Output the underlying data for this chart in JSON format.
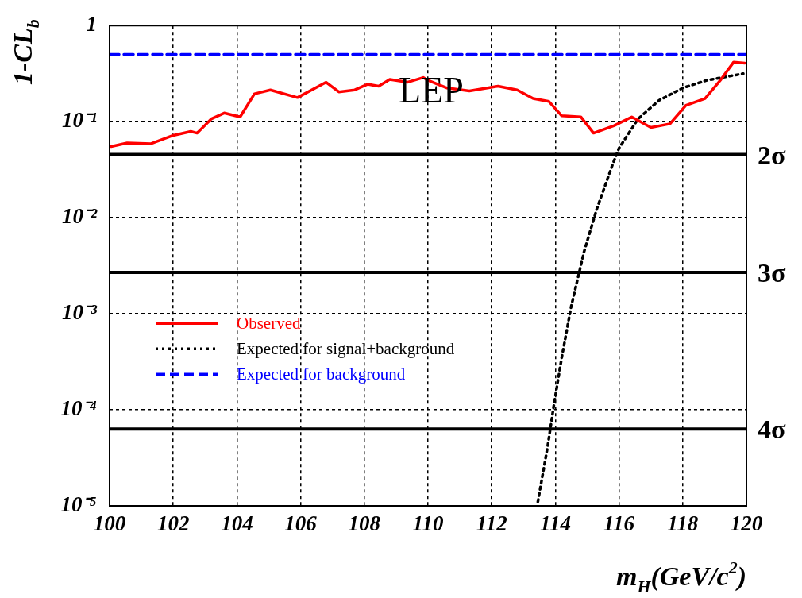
{
  "chart_data": {
    "type": "line",
    "xlabel": "m$_{H}$(GeV/c$^{2}$)",
    "ylabel": "1-CL$_{b}$",
    "log": "y",
    "grid": true,
    "legend": "left",
    "xlim": [
      100,
      120
    ],
    "xticks": [
      100,
      102,
      104,
      106,
      108,
      110,
      112,
      114,
      116,
      118,
      120
    ],
    "ylim": [
      1e-05,
      1
    ],
    "yticks": [
      {
        "value": 1,
        "label": "1"
      },
      {
        "value": 0.1,
        "label": "10⁻¹"
      },
      {
        "value": 0.01,
        "label": "10⁻²"
      },
      {
        "value": 0.001,
        "label": "10⁻³"
      },
      {
        "value": 0.0001,
        "label": "10⁻⁴"
      },
      {
        "value": 1e-05,
        "label": "10⁻⁵"
      }
    ],
    "series": [
      {
        "name": "Observed",
        "color": "#ff0000",
        "line_style": "solid",
        "x": [
          100.05,
          100.55,
          101.3,
          102.0,
          102.55,
          102.75,
          103.2,
          103.6,
          104.1,
          104.55,
          105.05,
          105.9,
          106.8,
          107.2,
          107.7,
          108.1,
          108.45,
          108.8,
          109.35,
          109.85,
          110.0,
          110.6,
          111.3,
          112.2,
          112.8,
          113.3,
          113.8,
          114.2,
          114.8,
          115.2,
          115.85,
          116.4,
          117.0,
          117.6,
          118.1,
          118.7,
          119.2,
          119.6,
          119.95
        ],
        "values": [
          0.055,
          0.06,
          0.059,
          0.072,
          0.079,
          0.076,
          0.107,
          0.123,
          0.112,
          0.195,
          0.214,
          0.178,
          0.257,
          0.204,
          0.214,
          0.245,
          0.234,
          0.275,
          0.257,
          0.288,
          0.269,
          0.224,
          0.209,
          0.234,
          0.214,
          0.174,
          0.162,
          0.115,
          0.112,
          0.076,
          0.091,
          0.112,
          0.087,
          0.095,
          0.148,
          0.174,
          0.275,
          0.417,
          0.407
        ]
      },
      {
        "name": "Expected for signal+background",
        "color": "#000000",
        "line_style": "dotted",
        "x": [
          113.45,
          113.75,
          113.95,
          114.2,
          114.5,
          114.9,
          115.3,
          115.8,
          116.0,
          116.6,
          117.25,
          118.0,
          118.75,
          119.9
        ],
        "values": [
          1.1e-05,
          4e-05,
          0.00011,
          0.00035,
          0.0012,
          0.0044,
          0.0123,
          0.036,
          0.053,
          0.107,
          0.166,
          0.224,
          0.269,
          0.316
        ]
      },
      {
        "name": "Expected for background",
        "color": "#0000ff",
        "line_style": "dashed",
        "x": [
          100,
          120
        ],
        "values": [
          0.5,
          0.5
        ]
      }
    ],
    "ref_lines": [
      {
        "axis": "y",
        "value": 0.0455,
        "label": "2σ",
        "color": "#000000"
      },
      {
        "axis": "y",
        "value": 0.0027,
        "label": "3σ",
        "color": "#000000"
      },
      {
        "axis": "y",
        "value": 6.3e-05,
        "label": "4σ",
        "color": "#000000"
      }
    ],
    "annotations": [
      "LEP"
    ]
  }
}
